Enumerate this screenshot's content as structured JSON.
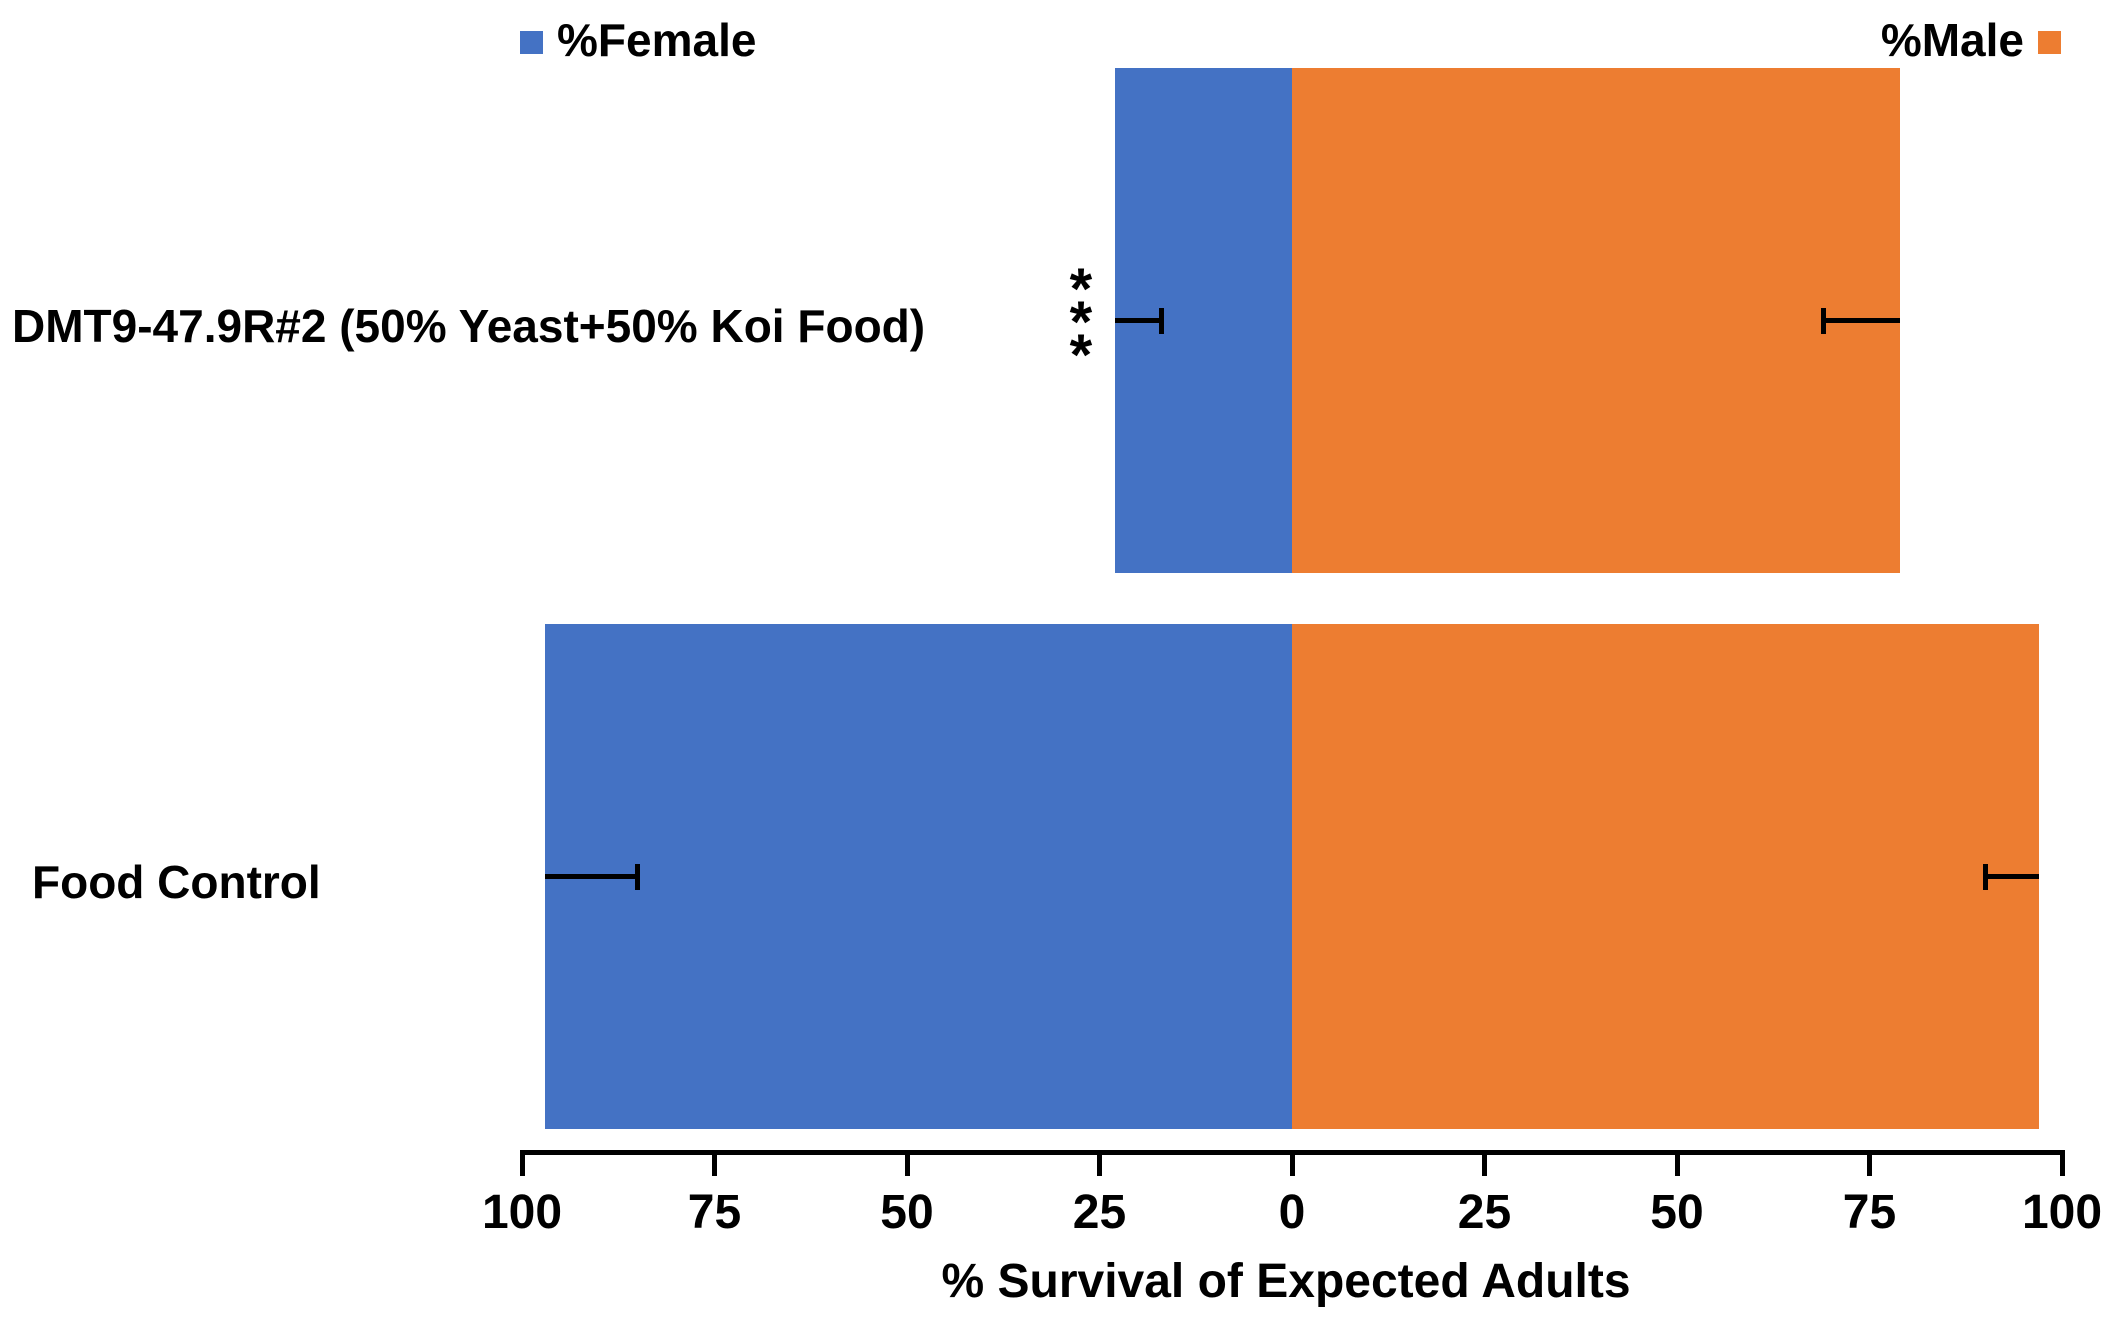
{
  "legend": {
    "female_label": "%Female",
    "male_label": "%Male"
  },
  "colors": {
    "female": "#4472C4",
    "male": "#ED7D31",
    "axis": "#000000",
    "text": "#000000",
    "background": "#FFFFFF"
  },
  "chart_data": {
    "type": "bar",
    "subtype": "diverging-horizontal",
    "title": "",
    "xlabel": "% Survival of Expected Adults",
    "categories": [
      "DMT9-47.9R#2 (50% Yeast+50% Koi Food)",
      "Food Control"
    ],
    "series": [
      {
        "name": "%Female",
        "side": "left",
        "color": "#4472C4",
        "values": [
          23,
          97
        ],
        "error_toward_zero": [
          6,
          12
        ]
      },
      {
        "name": "%Male",
        "side": "right",
        "color": "#ED7D31",
        "values": [
          79,
          97
        ],
        "error_toward_zero": [
          10,
          7
        ]
      }
    ],
    "annotations": [
      {
        "text": "***",
        "category_index": 0,
        "series": "%Female",
        "orientation": "vertical",
        "position": "outside-bar-end"
      }
    ],
    "x_ticks": [
      {
        "value": -100,
        "label": "100"
      },
      {
        "value": -75,
        "label": "75"
      },
      {
        "value": -50,
        "label": "50"
      },
      {
        "value": -25,
        "label": "25"
      },
      {
        "value": 0,
        "label": "0"
      },
      {
        "value": 25,
        "label": "25"
      },
      {
        "value": 50,
        "label": "50"
      },
      {
        "value": 75,
        "label": "75"
      },
      {
        "value": 100,
        "label": "100"
      }
    ],
    "x_range": [
      -100,
      100
    ],
    "grid": false,
    "legend_position": "top"
  }
}
